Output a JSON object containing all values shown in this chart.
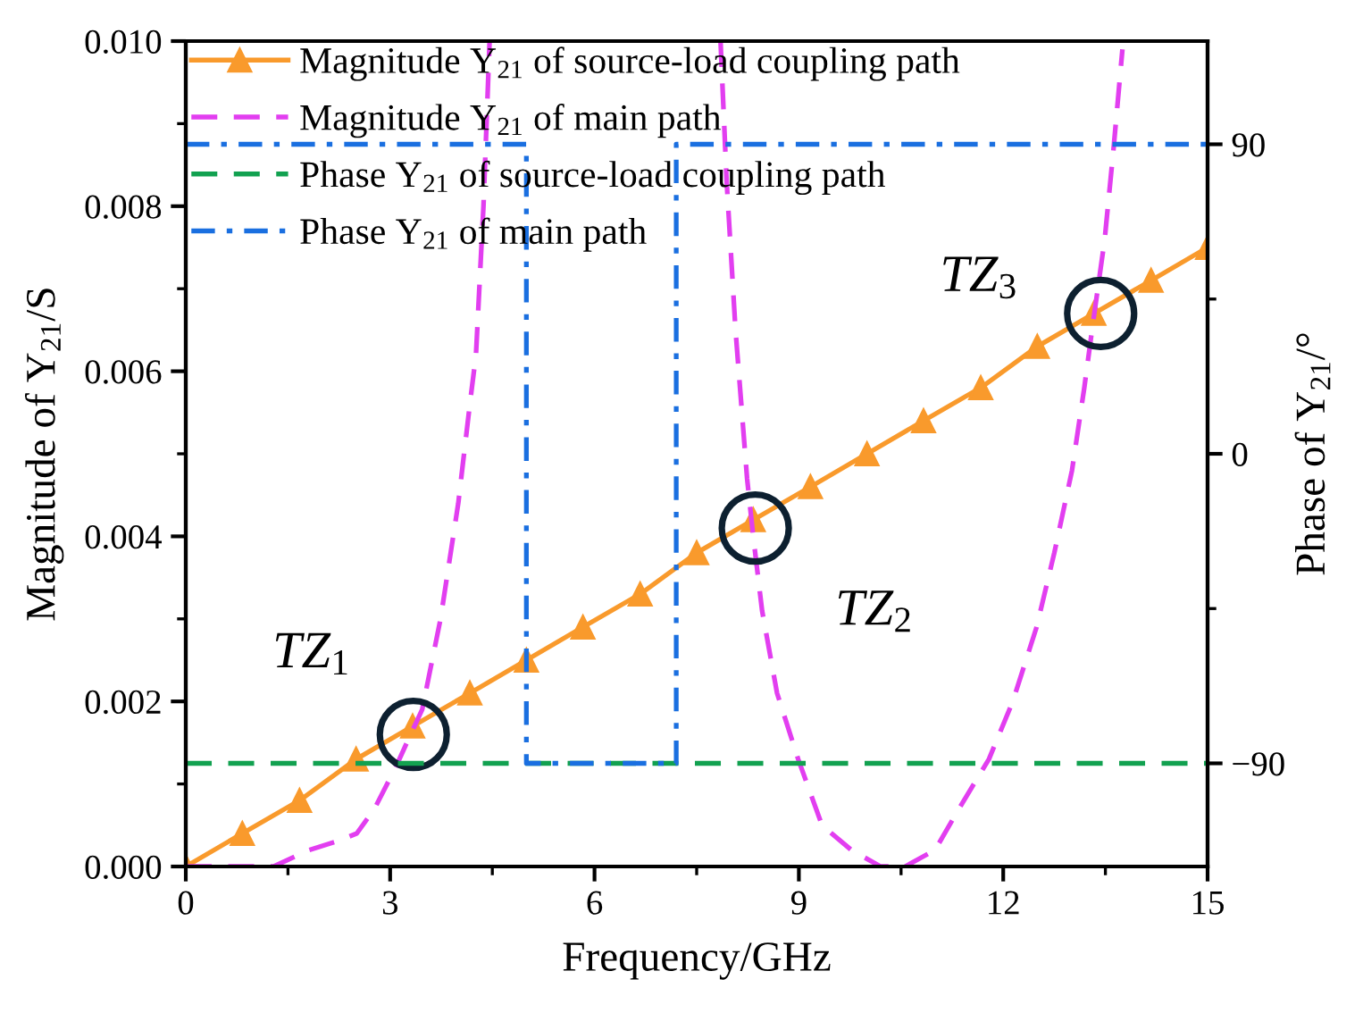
{
  "chart_data": {
    "type": "line",
    "xlabel": "Frequency/GHz",
    "ylabel": "Magnitude of Y$_{21}$/S",
    "y2label": "Phase of Y$_{21}$/°",
    "xlim": [
      0,
      15
    ],
    "xticks": [
      0,
      {
        "value": 1.5,
        "label": null
      },
      3,
      {
        "value": 4.5,
        "label": null
      },
      6,
      {
        "value": 7.5,
        "label": null
      },
      9,
      {
        "value": 10.5,
        "label": null
      },
      12,
      {
        "value": 13.5,
        "label": null
      },
      15
    ],
    "ylim": [
      0,
      0.01
    ],
    "yticks": [
      {
        "value": 0,
        "label": "0.000"
      },
      {
        "value": 0.001,
        "label": null
      },
      0.002,
      {
        "value": 0.003,
        "label": null
      },
      0.004,
      {
        "value": 0.005,
        "label": null
      },
      0.006,
      {
        "value": 0.007,
        "label": null
      },
      0.008,
      {
        "value": 0.009,
        "label": null
      },
      {
        "value": 0.01,
        "label": "0.010"
      }
    ],
    "y2lim": [
      -120,
      120
    ],
    "y2ticks": [
      {
        "value": -90,
        "label": "−90"
      },
      {
        "value": -45,
        "label": null
      },
      0,
      {
        "value": 45,
        "label": null
      },
      90
    ],
    "legend": "top left",
    "series": [
      {
        "name": "Magnitude Y$_{21}$ of source-load coupling path",
        "color": "#f99a2c",
        "marker": "triangle",
        "line_style": "solid",
        "x": [
          0,
          0.83,
          1.67,
          2.5,
          3.33,
          4.17,
          5,
          5.83,
          6.67,
          7.5,
          8.33,
          9.17,
          10,
          10.83,
          11.67,
          12.5,
          13.33,
          14.17,
          15
        ],
        "values": [
          0,
          0.0004,
          0.0008,
          0.0013,
          0.0017,
          0.0021,
          0.0025,
          0.0029,
          0.0033,
          0.0038,
          0.0042,
          0.0046,
          0.005,
          0.0054,
          0.0058,
          0.0063,
          0.0067,
          0.0071,
          0.0075
        ]
      },
      {
        "name": "Magnitude Y$_{21}$ of main path",
        "color": "#e23ef0",
        "marker": "none",
        "line_style": "dashed",
        "x": [
          0,
          1.29,
          1.81,
          2.2,
          2.51,
          2.77,
          3.08,
          3.3,
          3.47,
          3.74,
          4.0,
          4.17,
          4.26,
          4.37,
          4.46,
          6.1,
          7.85,
          7.94,
          8.07,
          8.24,
          8.33,
          8.46,
          8.68,
          8.99,
          9.34,
          9.77,
          10.2,
          10.56,
          11.0,
          11.35,
          11.79,
          12.14,
          12.49,
          12.75,
          13.01,
          13.19,
          13.32,
          13.49,
          13.62,
          13.75
        ],
        "values": [
          0,
          0,
          0.0002,
          0.0003,
          0.0004,
          0.0007,
          0.0012,
          0.0016,
          0.0019,
          0.003,
          0.0044,
          0.0056,
          0.0062,
          0.008,
          0.01,
          null,
          0.01,
          0.0083,
          0.0065,
          0.0047,
          0.004,
          0.0031,
          0.0021,
          0.0013,
          0.0005,
          0.0002,
          0,
          0,
          0.0002,
          0.0007,
          0.0013,
          0.002,
          0.0029,
          0.0038,
          0.0048,
          0.0058,
          0.0066,
          0.0076,
          0.0087,
          0.0099
        ]
      },
      {
        "name": "Phase Y$_{21}$ of source-load coupling path",
        "color": "#12a150",
        "marker": "none",
        "line_style": "dashed",
        "axis": "y2",
        "x": [
          0,
          15
        ],
        "values": [
          -90,
          -90
        ]
      },
      {
        "name": "Phase Y$_{21}$ of main path",
        "color": "#1a6fe0",
        "marker": "none",
        "line_style": "dashdot",
        "axis": "y2",
        "x": [
          0,
          5.0,
          5.0,
          7.2,
          7.2,
          15
        ],
        "values": [
          90,
          90,
          -90,
          -90,
          90,
          90
        ]
      }
    ],
    "annotations": [
      {
        "text": "TZ$_{1}$",
        "x": 3.34,
        "y": 0.0016
      },
      {
        "text": "TZ$_{2}$",
        "x": 8.36,
        "y": 0.0041
      },
      {
        "text": "TZ$_{3}$",
        "x": 13.43,
        "y": 0.0067
      }
    ]
  }
}
